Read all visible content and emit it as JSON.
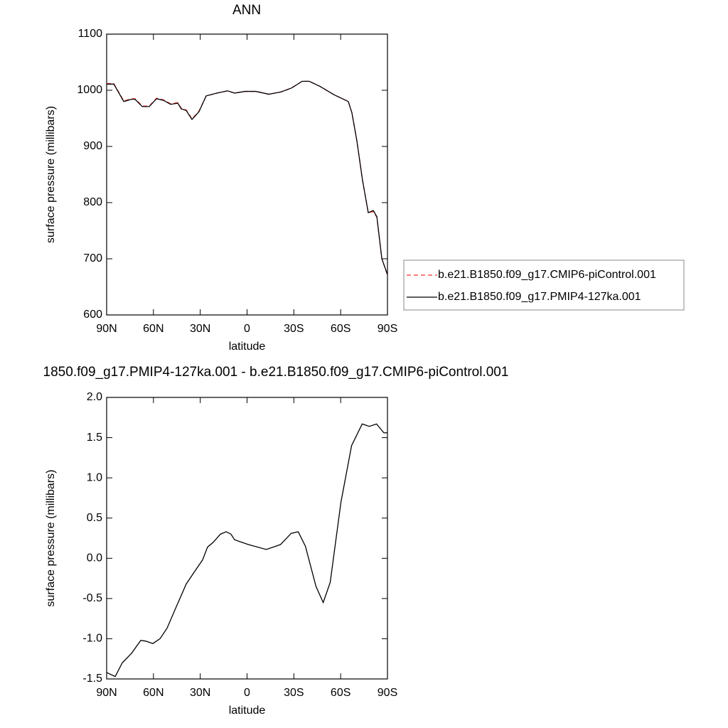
{
  "chart_data": [
    {
      "type": "line",
      "title": "ANN",
      "xlabel": "latitude",
      "ylabel": "surface pressure (millibars)",
      "x": [
        90,
        85.4,
        79,
        74,
        71.8,
        67.2,
        62.7,
        58,
        53.5,
        49,
        44.4,
        42.2,
        39,
        35.3,
        30.8,
        26.2,
        19.4,
        12.5,
        8,
        1.2,
        -5.7,
        -13.9,
        -21.7,
        -28.5,
        -35.3,
        -39.9,
        -46.7,
        -55.8,
        -64.9,
        -67.2,
        -70.4,
        -74,
        -77.7,
        -80.9,
        -83.2,
        -86.4,
        -90
      ],
      "series": [
        {
          "name": "b.e21.B1850.f09_g17.CMIP6-piControl.001",
          "color": "#ff3030",
          "dash": true,
          "values": [
            1012,
            1012,
            981,
            985,
            985,
            972,
            972,
            986,
            983,
            976,
            978,
            968,
            965,
            949,
            963,
            990,
            995,
            999,
            995,
            998,
            998,
            993,
            997,
            1004,
            1016,
            1016,
            1007,
            992,
            980,
            960,
            910,
            840,
            782,
            784,
            774,
            700,
            671
          ]
        },
        {
          "name": "b.e21.B1850.f09_g17.PMIP4-127ka.001",
          "color": "#000000",
          "dash": false,
          "values": [
            1011,
            1011,
            980,
            984,
            984,
            971,
            971,
            985,
            982,
            975,
            977,
            967,
            964,
            948,
            962,
            990,
            995,
            999,
            995,
            998,
            998,
            993,
            997,
            1004,
            1016,
            1016,
            1007,
            992,
            980,
            960,
            910,
            840,
            782,
            786,
            775,
            700,
            672
          ]
        }
      ],
      "xlim": [
        90,
        -90
      ],
      "ylim": [
        600,
        1100
      ],
      "xticks": [
        {
          "value": 90,
          "label": "90N"
        },
        {
          "value": 60,
          "label": "60N"
        },
        {
          "value": 30,
          "label": "30N"
        },
        0,
        {
          "value": -30,
          "label": "30S"
        },
        {
          "value": -60,
          "label": "60S"
        },
        {
          "value": -90,
          "label": "90S"
        }
      ],
      "yticks": [
        600,
        700,
        800,
        900,
        1000,
        1100
      ]
    },
    {
      "type": "line",
      "title": "1850.f09_g17.PMIP4-127ka.001 - b.e21.B1850.f09_g17.CMIP6-piControl.001",
      "xlabel": "latitude",
      "ylabel": "surface pressure (millibars)",
      "x": [
        90,
        84.5,
        80,
        74,
        68.1,
        64.9,
        60.4,
        55.8,
        51.3,
        45.3,
        39,
        33.1,
        28.5,
        25.3,
        21.6,
        17.1,
        13.4,
        10.3,
        8,
        -0.9,
        -12.3,
        -21.4,
        -28.3,
        -32.8,
        -37.4,
        -44.2,
        -48.8,
        -53.3,
        -60.2,
        -67,
        -73.8,
        -78.4,
        -83,
        -87.7,
        -90
      ],
      "series": [
        {
          "color": "#000000",
          "dash": false,
          "values": [
            -1.42,
            -1.47,
            -1.3,
            -1.18,
            -1.02,
            -1.03,
            -1.06,
            -1.0,
            -0.87,
            -0.6,
            -0.32,
            -0.15,
            -0.02,
            0.14,
            0.2,
            0.3,
            0.33,
            0.3,
            0.23,
            0.17,
            0.11,
            0.17,
            0.31,
            0.33,
            0.15,
            -0.35,
            -0.55,
            -0.3,
            0.7,
            1.4,
            1.67,
            1.64,
            1.67,
            1.56,
            1.56
          ]
        }
      ],
      "xlim": [
        90,
        -90
      ],
      "ylim": [
        -1.5,
        2.0
      ],
      "xticks": [
        {
          "value": 90,
          "label": "90N"
        },
        {
          "value": 60,
          "label": "60N"
        },
        {
          "value": 30,
          "label": "30N"
        },
        0,
        {
          "value": -30,
          "label": "30S"
        },
        {
          "value": -60,
          "label": "60S"
        },
        {
          "value": -90,
          "label": "90S"
        }
      ],
      "yticks": [
        {
          "value": -1.5,
          "label": "-1.5"
        },
        {
          "value": -1,
          "label": "-1.0"
        },
        -0.5,
        {
          "value": 0,
          "label": "0.0"
        },
        0.5,
        {
          "value": 1,
          "label": "1.0"
        },
        1.5,
        {
          "value": 2,
          "label": "2.0"
        }
      ]
    }
  ]
}
